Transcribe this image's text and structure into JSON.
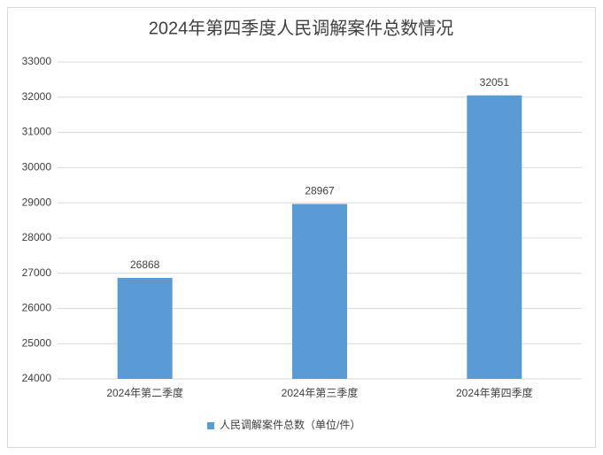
{
  "chart_data": {
    "type": "bar",
    "title": "2024年第四季度人民调解案件总数情况",
    "categories": [
      "2024年第二季度",
      "2024年第三季度",
      "2024年第四季度"
    ],
    "series": [
      {
        "name": "人民调解案件总数（单位/件）",
        "color": "#5b9bd5",
        "values": [
          26868,
          28967,
          32051
        ]
      }
    ],
    "ylim": [
      24000,
      33000
    ],
    "yticks": [
      24000,
      25000,
      26000,
      27000,
      28000,
      29000,
      30000,
      31000,
      32000,
      33000
    ],
    "grid": true,
    "legend": "bottom"
  }
}
